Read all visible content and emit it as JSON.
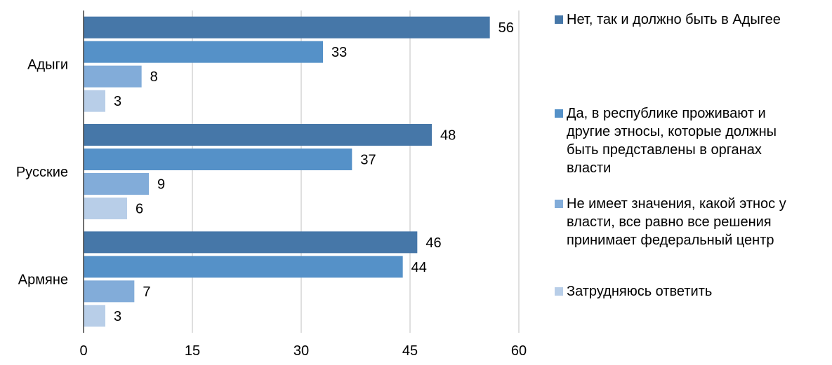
{
  "chart_data": {
    "type": "bar",
    "orientation": "horizontal",
    "categories": [
      "Адыги",
      "Русские",
      "Армяне"
    ],
    "series": [
      {
        "name": "Нет, так и должно быть в Адыгее",
        "values": [
          56,
          48,
          46
        ],
        "color": "#4677A8"
      },
      {
        "name": "Да, в республике проживают и другие этносы, которые должны быть представлены в органах власти",
        "values": [
          33,
          37,
          44
        ],
        "color": "#5591C8"
      },
      {
        "name": "Не имеет значения, какой этнос у власти, все равно все решения принимает федеральный центр",
        "values": [
          8,
          9,
          7
        ],
        "color": "#82ACD9"
      },
      {
        "name": "Затрудняюсь ответить",
        "values": [
          3,
          6,
          3
        ],
        "color": "#B8CEE8"
      }
    ],
    "x_ticks": [
      "0",
      "15",
      "30",
      "45",
      "60"
    ],
    "xlim": [
      0,
      60
    ],
    "grid": true,
    "legend_position": "right",
    "data_labels": true
  },
  "legend_lines": [
    [
      "Нет, так и должно быть в Адыгее"
    ],
    [
      "Да, в республике проживают и",
      "другие этносы, которые должны",
      "быть представлены в органах",
      "власти"
    ],
    [
      "Не имеет значения, какой этнос у",
      "власти, все равно все решения",
      "принимает федеральный центр"
    ],
    [
      "Затрудняюсь ответить"
    ]
  ]
}
